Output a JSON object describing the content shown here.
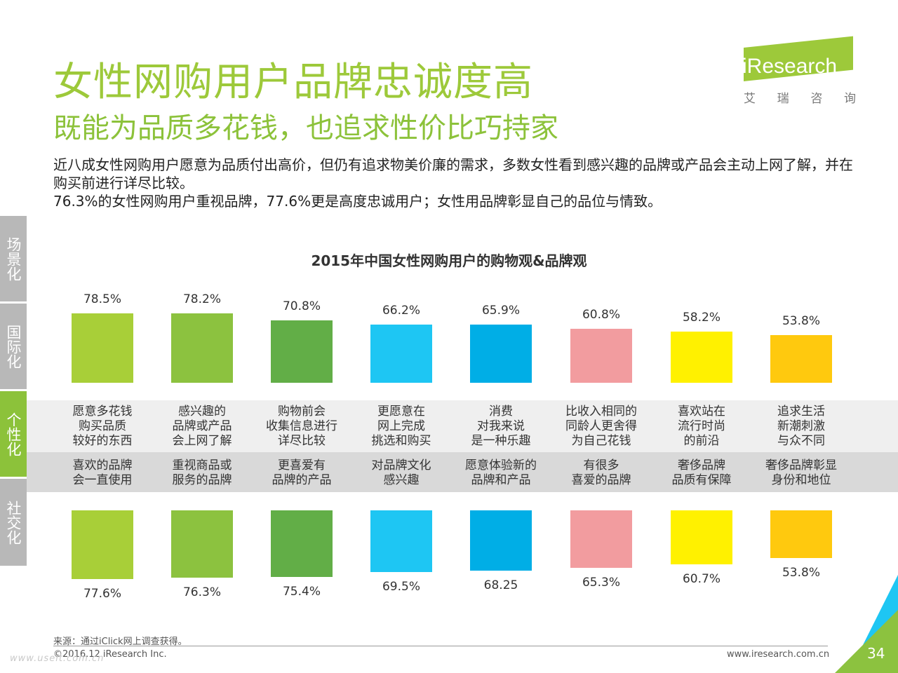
{
  "header": {
    "title": "女性网购用户品牌忠诚度高",
    "subtitle": "既能为品质多花钱，也追求性价比巧持家"
  },
  "logo": {
    "brand": "iResearch",
    "cn_chars": [
      "艾",
      "瑞",
      "咨",
      "询"
    ]
  },
  "description": [
    "近八成女性网购用户愿意为品质付出高价，但仍有追求物美价廉的需求，多数女性看到感兴趣的品牌或产品会主动上网了解，并在购买前进行详尽比较。",
    "76.3%的女性网购用户重视品牌，77.6%更是高度忠诚用户；女性用品牌彰显自己的品位与情致。"
  ],
  "side_tabs": [
    {
      "label": "场景化",
      "active": false
    },
    {
      "label": "国际化",
      "active": false
    },
    {
      "label": "个性化",
      "active": true
    },
    {
      "label": "社交化",
      "active": false
    }
  ],
  "colors": {
    "title_green": "#9dc93a",
    "tab_gray": "#b8b8b8",
    "tab_active": "#8cc23a",
    "band_top": "#efefef",
    "band_bottom": "#d9d9d9"
  },
  "chart_data": {
    "type": "bar",
    "title": "2015年中国女性网购用户的购物观&品牌观",
    "ylim": [
      0,
      100
    ],
    "colors": [
      "#a8cf38",
      "#8cc23f",
      "#62ae47",
      "#1ec6f3",
      "#00aee6",
      "#f29c9f",
      "#fff100",
      "#ffc90e"
    ],
    "top_series": {
      "categories": [
        "愿意多花钱\n购买品质\n较好的东西",
        "感兴趣的\n品牌或产品\n会上网了解",
        "购物前会\n收集信息进行\n详尽比较",
        "更愿意在\n网上完成\n挑选和购买",
        "消费\n对我来说\n是一种乐趣",
        "比收入相同的\n同龄人更舍得\n为自己花钱",
        "喜欢站在\n流行时尚\n的前沿",
        "追求生活\n新潮刺激\n与众不同"
      ],
      "values": [
        78.5,
        78.2,
        70.8,
        66.2,
        65.9,
        60.8,
        58.2,
        53.8
      ],
      "labels": [
        "78.5%",
        "78.2%",
        "70.8%",
        "66.2%",
        "65.9%",
        "60.8%",
        "58.2%",
        "53.8%"
      ]
    },
    "bottom_series": {
      "categories": [
        "喜欢的品牌\n会一直使用",
        "重视商品或\n服务的品牌",
        "更喜爱有\n品牌的产品",
        "对品牌文化\n感兴趣",
        "愿意体验新的\n品牌和产品",
        "有很多\n喜爱的品牌",
        "奢侈品牌\n品质有保障",
        "奢侈品牌彰显\n身份和地位"
      ],
      "values": [
        77.6,
        76.3,
        75.4,
        69.5,
        68.25,
        65.3,
        60.7,
        53.8
      ],
      "labels": [
        "77.6%",
        "76.3%",
        "75.4%",
        "69.5%",
        "68.25",
        "65.3%",
        "60.7%",
        "53.8%"
      ]
    }
  },
  "footer": {
    "source": "来源：通过iClick网上调查获得。",
    "copyright": "©2016.12 iResearch Inc.",
    "url": "www.iresearch.com.cn",
    "page": "34",
    "watermark": "www.useit.com.cn"
  }
}
